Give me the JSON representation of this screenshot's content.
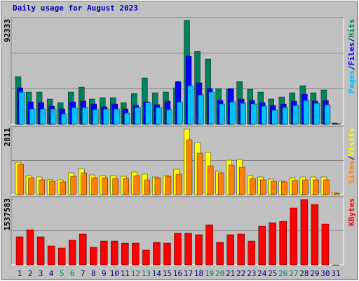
{
  "chart_data": [
    {
      "type": "bar",
      "title": "Daily usage for August 2023",
      "legend_separator": "/",
      "ylim": [
        0,
        92333
      ],
      "yticks": [
        92333
      ],
      "series": [
        {
          "name": "Hits",
          "color": "#00805c",
          "values": [
            42420,
            28700,
            28700,
            22460,
            19340,
            28700,
            33060,
            22460,
            23700,
            23700,
            19340,
            27450,
            41170,
            28070,
            28700,
            32440,
            92333,
            64880,
            58020,
            31820,
            31190,
            38060,
            31190,
            28700,
            22460,
            24330,
            28070,
            34310,
            28070,
            30570,
            1250
          ]
        },
        {
          "name": "Files",
          "color": "#0000ff",
          "values": [
            32440,
            19960,
            19340,
            16220,
            13720,
            19960,
            20590,
            18090,
            15600,
            18090,
            13720,
            16840,
            19960,
            17470,
            20590,
            38060,
            60520,
            36810,
            31820,
            21210,
            31820,
            22460,
            21210,
            19340,
            16840,
            18090,
            20590,
            26830,
            20590,
            21210,
            600
          ]
        },
        {
          "name": "Pages",
          "color": "#00c0ff",
          "values": [
            28700,
            13720,
            13720,
            13720,
            9360,
            14970,
            14970,
            13100,
            13720,
            13720,
            9980,
            14970,
            19340,
            14970,
            13100,
            19960,
            34310,
            26200,
            28700,
            18090,
            19960,
            18720,
            18090,
            16220,
            12480,
            14970,
            16840,
            21210,
            18720,
            17470,
            600
          ]
        }
      ]
    },
    {
      "type": "bar",
      "ylim": [
        0,
        2811
      ],
      "yticks": [
        2811
      ],
      "series": [
        {
          "name": "Visits",
          "color": "#ffff00",
          "values": [
            1390,
            816,
            756,
            635,
            635,
            937,
            1118,
            846,
            816,
            816,
            786,
            967,
            877,
            756,
            816,
            1088,
            2811,
            2237,
            1814,
            997,
            1481,
            1511,
            816,
            756,
            665,
            574,
            725,
            756,
            756,
            756,
            91
          ]
        },
        {
          "name": "Sites",
          "color": "#ff8000",
          "values": [
            1300,
            725,
            635,
            574,
            544,
            786,
            937,
            725,
            725,
            695,
            695,
            816,
            635,
            725,
            786,
            877,
            2358,
            1783,
            1239,
            937,
            1270,
            1179,
            695,
            635,
            574,
            544,
            605,
            635,
            635,
            635,
            60
          ]
        }
      ]
    },
    {
      "type": "bar",
      "ylim": [
        0,
        1537583
      ],
      "yticks": [
        1537583
      ],
      "categories": [
        "1",
        "2",
        "3",
        "4",
        "5",
        "6",
        "7",
        "8",
        "9",
        "10",
        "11",
        "12",
        "13",
        "14",
        "15",
        "16",
        "17",
        "18",
        "19",
        "20",
        "21",
        "22",
        "23",
        "24",
        "25",
        "26",
        "27",
        "28",
        "29",
        "30",
        "31"
      ],
      "category_colors": [
        "#000080",
        "#000080",
        "#000080",
        "#000080",
        "#00805c",
        "#00805c",
        "#000080",
        "#000080",
        "#000080",
        "#000080",
        "#000080",
        "#00805c",
        "#00805c",
        "#000080",
        "#000080",
        "#000080",
        "#000080",
        "#000080",
        "#00805c",
        "#00805c",
        "#000080",
        "#000080",
        "#000080",
        "#000080",
        "#000080",
        "#00805c",
        "#00805c",
        "#000080",
        "#000080",
        "#000080",
        "#000080"
      ],
      "series": [
        {
          "name": "KBytes",
          "color": "#ff0000",
          "values": [
            661330,
            826660,
            661330,
            446390,
            396800,
            578650,
            727440,
            413330,
            562120,
            562120,
            512530,
            512530,
            347200,
            529060,
            512530,
            743980,
            743980,
            710920,
            942390,
            529060,
            710920,
            727440,
            562120,
            909320,
            991980,
            1025050,
            1339170,
            1537583,
            1421850,
            958910,
            0
          ]
        }
      ]
    }
  ]
}
